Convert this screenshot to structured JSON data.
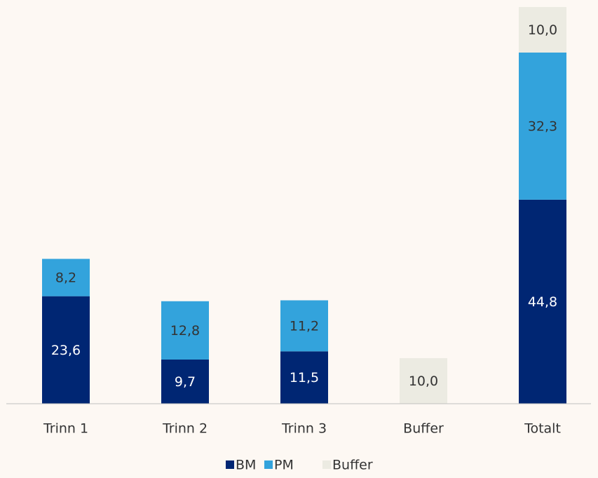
{
  "chart_data": {
    "type": "stacked_bar",
    "categories": [
      "Trinn 1",
      "Trinn 2",
      "Trinn 3",
      "Buffer",
      "Totalt"
    ],
    "series": [
      {
        "name": "BM",
        "color": "#002673",
        "values": [
          23.6,
          9.7,
          11.5,
          null,
          44.8
        ],
        "value_labels": [
          "23,6",
          "9,7",
          "11,5",
          null,
          "44,8"
        ]
      },
      {
        "name": "PM",
        "color": "#33a3dc",
        "values": [
          8.2,
          12.8,
          11.2,
          null,
          32.3
        ],
        "value_labels": [
          "8,2",
          "12,8",
          "11,2",
          null,
          "32,3"
        ]
      },
      {
        "name": "Buffer",
        "color": "#ecebe2",
        "values": [
          null,
          null,
          null,
          10.0,
          10.0
        ],
        "value_labels": [
          null,
          null,
          null,
          "10,0",
          "10,0"
        ]
      }
    ],
    "legend": "bottom"
  }
}
